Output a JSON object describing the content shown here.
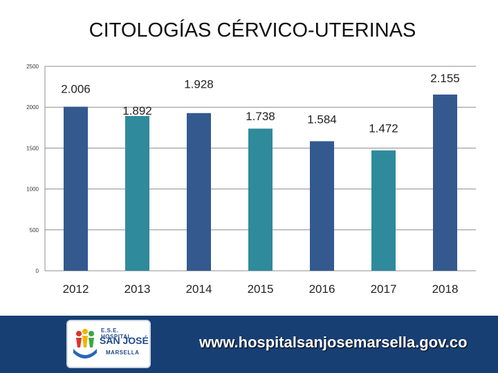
{
  "chart_data": {
    "type": "bar",
    "title": "CITOLOGÍAS CÉRVICO-UTERINAS",
    "categories": [
      "2012",
      "2013",
      "2014",
      "2015",
      "2016",
      "2017",
      "2018"
    ],
    "values": [
      2006,
      1892,
      1928,
      1738,
      1584,
      1472,
      2155
    ],
    "value_labels": [
      "2.006",
      "1.892",
      "1.928",
      "1.738",
      "1.584",
      "1.472",
      "2.155"
    ],
    "ylim": [
      0,
      2500
    ],
    "yticks": [
      0,
      500,
      1000,
      1500,
      2000,
      2500
    ],
    "ytick_labels": [
      "0",
      "500",
      "1000",
      "1500",
      "2000",
      "2500"
    ],
    "grid": true,
    "bar_colors": [
      "#33598f",
      "#2f8a9c",
      "#33598f",
      "#2f8a9c",
      "#33598f",
      "#2f8a9c",
      "#33598f"
    ]
  },
  "footer": {
    "logo": {
      "line1": "E.S.E. HOSPITAL",
      "line2": "SAN JOSÉ",
      "line3": "MARSELLA"
    },
    "website": "www.hospitalsanjosemarsella.gov.co",
    "background": "#173f73"
  }
}
